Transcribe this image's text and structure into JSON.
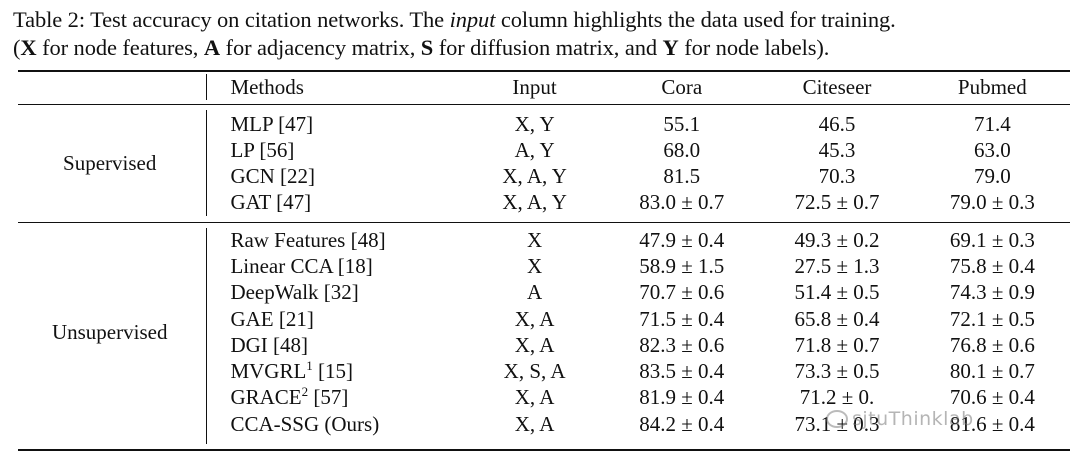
{
  "caption": {
    "line1_prefix": "Table 2: Test accuracy on citation networks. The ",
    "line1_italic": "input",
    "line1_suffix": " column highlights the data used for training.",
    "line2_a": "(",
    "line2_X": "X",
    "line2_b": " for node features, ",
    "line2_A": "A",
    "line2_c": " for adjacency matrix, ",
    "line2_S": "S",
    "line2_d": " for diffusion matrix, and ",
    "line2_Y": "Y",
    "line2_e": " for node labels)."
  },
  "headers": {
    "methods": "Methods",
    "input": "Input",
    "cora": "Cora",
    "citeseer": "Citeseer",
    "pubmed": "Pubmed"
  },
  "groups": {
    "supervised": "Supervised",
    "unsupervised": "Unsupervised"
  },
  "supervised_rows": [
    {
      "method": "MLP [47]",
      "sup": "",
      "ref": "",
      "input": "X, Y",
      "cora": "55.1",
      "citeseer": "46.5",
      "pubmed": "71.4"
    },
    {
      "method": "LP [56]",
      "sup": "",
      "ref": "",
      "input": "A, Y",
      "cora": "68.0",
      "citeseer": "45.3",
      "pubmed": "63.0"
    },
    {
      "method": "GCN [22]",
      "sup": "",
      "ref": "",
      "input": "X, A, Y",
      "cora": "81.5",
      "citeseer": "70.3",
      "pubmed": "79.0"
    },
    {
      "method": "GAT [47]",
      "sup": "",
      "ref": "",
      "input": "X, A, Y",
      "cora": "83.0 ± 0.7",
      "citeseer": "72.5 ± 0.7",
      "pubmed": "79.0 ± 0.3"
    }
  ],
  "unsupervised_rows": [
    {
      "method": "Raw Features [48]",
      "sup": "",
      "ref": "",
      "input": "X",
      "cora": "47.9 ± 0.4",
      "citeseer": "49.3 ± 0.2",
      "pubmed": "69.1 ± 0.3"
    },
    {
      "method": "Linear CCA [18]",
      "sup": "",
      "ref": "",
      "input": "X",
      "cora": "58.9 ± 1.5",
      "citeseer": "27.5 ± 1.3",
      "pubmed": "75.8 ± 0.4"
    },
    {
      "method": "DeepWalk [32]",
      "sup": "",
      "ref": "",
      "input": "A",
      "cora": "70.7 ± 0.6",
      "citeseer": "51.4 ± 0.5",
      "pubmed": "74.3 ± 0.9"
    },
    {
      "method": "GAE [21]",
      "sup": "",
      "ref": "",
      "input": "X, A",
      "cora": "71.5 ± 0.4",
      "citeseer": "65.8 ± 0.4",
      "pubmed": "72.1 ± 0.5"
    },
    {
      "method": "DGI [48]",
      "sup": "",
      "ref": "",
      "input": "X, A",
      "cora": "82.3 ± 0.6",
      "citeseer": "71.8 ± 0.7",
      "pubmed": "76.8 ± 0.6"
    },
    {
      "method": "MVGRL",
      "sup": "1",
      "ref": " [15]",
      "input": "X, S, A",
      "cora": "83.5 ± 0.4",
      "citeseer": "73.3 ± 0.5",
      "pubmed": "80.1 ± 0.7"
    },
    {
      "method": "GRACE",
      "sup": "2",
      "ref": " [57]",
      "input": "X, A",
      "cora": "81.9 ± 0.4",
      "citeseer": "71.2 ± 0.",
      "pubmed": "70.6 ± 0.4"
    },
    {
      "method": "CCA-SSG (Ours)",
      "sup": "",
      "ref": "",
      "input": "X, A",
      "cora": "84.2 ± 0.4",
      "citeseer": "73.1 ± 0.3",
      "pubmed": "81.6 ± 0.4"
    }
  ],
  "bold_cells": {
    "MVGRL": [
      "citeseer"
    ],
    "CCA-SSG (Ours)": [
      "cora",
      "pubmed"
    ]
  },
  "watermark": "sjtuThinklab"
}
